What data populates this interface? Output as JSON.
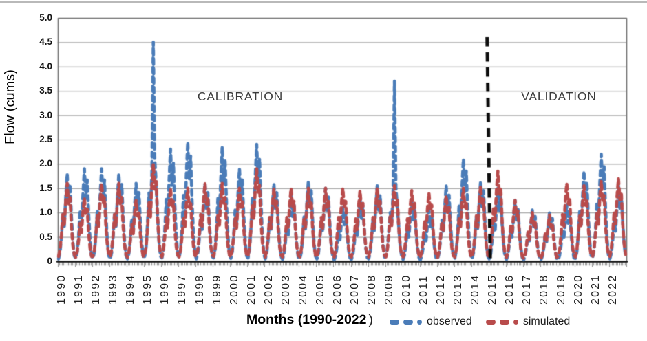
{
  "figure": {
    "ylabel": "Flow (cums)",
    "xlabel": "Months (1990-2022",
    "xlabel_close": ")",
    "calibration_label": "CALIBRATION",
    "validation_label": "VALIDATION",
    "legend": {
      "observed_label": "observed",
      "simulated_label": "simulated"
    }
  },
  "colors": {
    "observed": "#4a7cb8",
    "simulated": "#b84b4b",
    "grid": "#a8a8a8",
    "frame": "#6e6e6e",
    "baseline": "#1a1a1a",
    "minor_tick": "#8f8f8f",
    "divider": "#0d0d0d"
  },
  "chart_data": {
    "type": "line",
    "title": "",
    "xlabel": "Months (1990-2022)",
    "ylabel": "Flow (cums)",
    "ylim": [
      0,
      5.0
    ],
    "y_ticks": [
      "5.0",
      "4.5",
      "4.0",
      "3.5",
      "3.0",
      "2.5",
      "2.0",
      "1.5",
      "1.0",
      "0.5",
      "0"
    ],
    "x_years": [
      1990,
      1991,
      1992,
      1993,
      1994,
      1995,
      1996,
      1997,
      1998,
      1999,
      2000,
      2001,
      2002,
      2003,
      2004,
      2005,
      2006,
      2007,
      2008,
      2009,
      2010,
      2011,
      2012,
      2013,
      2014,
      2015,
      2016,
      2017,
      2018,
      2019,
      2020,
      2021,
      2022
    ],
    "line_style": "dashed",
    "grid": "horizontal",
    "legend_position": "bottom",
    "annotations": {
      "calibration": "CALIBRATION",
      "validation": "VALIDATION"
    },
    "divider_before_year": 2015,
    "series_names": [
      "observed",
      "simulated"
    ],
    "years": [
      {
        "year": 1990,
        "observed": [
          0.05,
          0.18,
          0.5,
          0.99,
          0.72,
          1.3,
          1.8,
          1.22,
          1.58,
          0.9,
          0.4,
          0.11
        ],
        "simulated": [
          0.1,
          0.24,
          0.54,
          0.96,
          0.72,
          1.25,
          1.6,
          1.18,
          1.31,
          0.7,
          0.32,
          0.13
        ]
      },
      {
        "year": 1991,
        "observed": [
          0.06,
          0.19,
          0.53,
          1.05,
          0.76,
          1.37,
          1.9,
          1.29,
          1.67,
          0.95,
          0.42,
          0.11
        ],
        "simulated": [
          0.08,
          0.2,
          0.44,
          0.78,
          0.59,
          1.01,
          1.3,
          0.96,
          1.07,
          0.57,
          0.26,
          0.1
        ]
      },
      {
        "year": 1992,
        "observed": [
          0.06,
          0.19,
          0.53,
          1.05,
          0.76,
          1.37,
          1.9,
          1.29,
          1.67,
          0.95,
          0.42,
          0.11
        ],
        "simulated": [
          0.1,
          0.24,
          0.54,
          0.96,
          0.72,
          1.25,
          1.6,
          1.18,
          1.31,
          0.7,
          0.32,
          0.13
        ]
      },
      {
        "year": 1993,
        "observed": [
          0.05,
          0.18,
          0.5,
          0.99,
          0.72,
          1.3,
          1.8,
          1.22,
          1.58,
          0.9,
          0.4,
          0.11
        ],
        "simulated": [
          0.1,
          0.24,
          0.54,
          0.96,
          0.72,
          1.25,
          1.6,
          1.18,
          1.31,
          0.7,
          0.32,
          0.13
        ]
      },
      {
        "year": 1994,
        "observed": [
          0.05,
          0.16,
          0.45,
          0.88,
          0.64,
          1.15,
          1.6,
          1.09,
          1.41,
          0.8,
          0.35,
          0.1
        ],
        "simulated": [
          0.08,
          0.19,
          0.43,
          0.75,
          0.56,
          0.98,
          1.25,
          0.93,
          1.03,
          0.55,
          0.25,
          0.1
        ]
      },
      {
        "year": 1995,
        "observed": [
          0.1,
          0.3,
          0.8,
          1.4,
          1.0,
          1.8,
          4.5,
          2.1,
          1.6,
          0.9,
          0.4,
          0.1
        ],
        "simulated": [
          0.12,
          0.3,
          0.68,
          1.2,
          0.9,
          1.56,
          2.0,
          1.48,
          1.64,
          0.88,
          0.4,
          0.16
        ]
      },
      {
        "year": 1996,
        "observed": [
          0.07,
          0.23,
          0.64,
          1.27,
          0.92,
          1.66,
          2.3,
          1.56,
          2.02,
          1.15,
          0.51,
          0.14
        ],
        "simulated": [
          0.09,
          0.23,
          0.51,
          0.9,
          0.68,
          1.17,
          1.5,
          1.11,
          1.23,
          0.66,
          0.3,
          0.12
        ]
      },
      {
        "year": 1997,
        "observed": [
          0.07,
          0.25,
          0.69,
          1.35,
          0.98,
          1.76,
          2.45,
          1.67,
          2.16,
          1.23,
          0.54,
          0.15
        ],
        "simulated": [
          0.09,
          0.23,
          0.51,
          0.9,
          0.68,
          1.17,
          1.5,
          1.11,
          1.23,
          0.66,
          0.3,
          0.12
        ]
      },
      {
        "year": 1998,
        "observed": [
          0.05,
          0.16,
          0.45,
          0.88,
          0.64,
          1.15,
          1.6,
          1.09,
          1.41,
          0.8,
          0.35,
          0.1
        ],
        "simulated": [
          0.1,
          0.24,
          0.54,
          0.96,
          0.72,
          1.25,
          1.6,
          1.18,
          1.31,
          0.7,
          0.32,
          0.13
        ]
      },
      {
        "year": 1999,
        "observed": [
          0.07,
          0.24,
          0.66,
          1.29,
          0.94,
          1.69,
          2.35,
          1.6,
          2.07,
          1.18,
          0.52,
          0.14
        ],
        "simulated": [
          0.1,
          0.24,
          0.54,
          0.96,
          0.72,
          1.25,
          1.6,
          1.18,
          1.31,
          0.7,
          0.32,
          0.13
        ]
      },
      {
        "year": 2000,
        "observed": [
          0.06,
          0.19,
          0.53,
          1.05,
          0.76,
          1.37,
          1.9,
          1.29,
          1.67,
          0.95,
          0.42,
          0.11
        ],
        "simulated": [
          0.09,
          0.23,
          0.51,
          0.9,
          0.68,
          1.17,
          1.5,
          1.11,
          1.23,
          0.66,
          0.3,
          0.12
        ]
      },
      {
        "year": 2001,
        "observed": [
          0.07,
          0.24,
          0.67,
          1.32,
          0.96,
          1.73,
          2.4,
          1.63,
          2.11,
          1.2,
          0.53,
          0.14
        ],
        "simulated": [
          0.11,
          0.29,
          0.65,
          1.14,
          0.86,
          1.48,
          1.9,
          1.41,
          1.56,
          0.84,
          0.38,
          0.15
        ]
      },
      {
        "year": 2002,
        "observed": [
          0.05,
          0.16,
          0.45,
          0.88,
          0.64,
          1.15,
          1.6,
          1.09,
          1.41,
          0.8,
          0.35,
          0.1
        ],
        "simulated": [
          0.09,
          0.23,
          0.51,
          0.9,
          0.68,
          1.17,
          1.5,
          1.11,
          1.23,
          0.66,
          0.3,
          0.12
        ]
      },
      {
        "year": 2003,
        "observed": [
          0.04,
          0.14,
          0.38,
          0.74,
          0.54,
          0.97,
          1.35,
          0.92,
          1.19,
          0.68,
          0.3,
          0.08
        ],
        "simulated": [
          0.09,
          0.23,
          0.51,
          0.9,
          0.68,
          1.17,
          1.5,
          1.11,
          1.23,
          0.66,
          0.3,
          0.12
        ]
      },
      {
        "year": 2004,
        "observed": [
          0.05,
          0.17,
          0.46,
          0.91,
          0.66,
          1.19,
          1.65,
          1.12,
          1.45,
          0.83,
          0.36,
          0.1
        ],
        "simulated": [
          0.09,
          0.23,
          0.51,
          0.9,
          0.68,
          1.17,
          1.5,
          1.11,
          1.23,
          0.66,
          0.3,
          0.12
        ]
      },
      {
        "year": 2005,
        "observed": [
          0.05,
          0.15,
          0.42,
          0.83,
          0.6,
          1.08,
          1.5,
          1.02,
          1.32,
          0.75,
          0.33,
          0.09
        ],
        "simulated": [
          0.09,
          0.23,
          0.51,
          0.9,
          0.68,
          1.17,
          1.5,
          1.11,
          1.23,
          0.66,
          0.3,
          0.12
        ]
      },
      {
        "year": 2006,
        "observed": [
          0.03,
          0.11,
          0.31,
          0.61,
          0.44,
          0.79,
          1.1,
          0.75,
          0.97,
          0.55,
          0.24,
          0.07
        ],
        "simulated": [
          0.09,
          0.23,
          0.51,
          0.9,
          0.68,
          1.17,
          1.5,
          1.11,
          1.23,
          0.66,
          0.3,
          0.12
        ]
      },
      {
        "year": 2007,
        "observed": [
          0.04,
          0.13,
          0.36,
          0.72,
          0.52,
          0.94,
          1.3,
          0.88,
          1.14,
          0.65,
          0.29,
          0.08
        ],
        "simulated": [
          0.09,
          0.22,
          0.49,
          0.87,
          0.65,
          1.13,
          1.45,
          1.07,
          1.19,
          0.64,
          0.29,
          0.12
        ]
      },
      {
        "year": 2008,
        "observed": [
          0.05,
          0.16,
          0.43,
          0.85,
          0.62,
          1.12,
          1.55,
          1.05,
          1.36,
          0.78,
          0.34,
          0.09
        ],
        "simulated": [
          0.09,
          0.23,
          0.51,
          0.9,
          0.68,
          1.17,
          1.5,
          1.11,
          1.23,
          0.66,
          0.3,
          0.12
        ]
      },
      {
        "year": 2009,
        "observed": [
          0.1,
          0.25,
          0.6,
          1.0,
          0.8,
          1.4,
          3.7,
          1.5,
          1.1,
          0.7,
          0.3,
          0.1
        ],
        "simulated": [
          0.09,
          0.23,
          0.53,
          0.93,
          0.7,
          1.21,
          1.55,
          1.15,
          1.27,
          0.68,
          0.31,
          0.12
        ]
      },
      {
        "year": 2010,
        "observed": [
          0.04,
          0.13,
          0.35,
          0.69,
          0.5,
          0.9,
          1.25,
          0.85,
          1.1,
          0.63,
          0.28,
          0.08
        ],
        "simulated": [
          0.09,
          0.22,
          0.49,
          0.87,
          0.65,
          1.13,
          1.45,
          1.07,
          1.19,
          0.64,
          0.29,
          0.12
        ]
      },
      {
        "year": 2011,
        "observed": [
          0.03,
          0.11,
          0.29,
          0.58,
          0.42,
          0.76,
          1.05,
          0.71,
          0.92,
          0.53,
          0.23,
          0.06
        ],
        "simulated": [
          0.08,
          0.21,
          0.48,
          0.84,
          0.63,
          1.09,
          1.4,
          1.04,
          1.15,
          0.62,
          0.28,
          0.11
        ]
      },
      {
        "year": 2012,
        "observed": [
          0.05,
          0.16,
          0.43,
          0.85,
          0.62,
          1.12,
          1.55,
          1.05,
          1.36,
          0.78,
          0.34,
          0.09
        ],
        "simulated": [
          0.08,
          0.2,
          0.46,
          0.81,
          0.61,
          1.05,
          1.35,
          1.0,
          1.11,
          0.59,
          0.27,
          0.11
        ]
      },
      {
        "year": 2013,
        "observed": [
          0.06,
          0.21,
          0.59,
          1.16,
          0.84,
          1.51,
          2.1,
          1.43,
          1.85,
          1.05,
          0.46,
          0.13
        ],
        "simulated": [
          0.09,
          0.23,
          0.51,
          0.9,
          0.68,
          1.17,
          1.5,
          1.11,
          1.23,
          0.66,
          0.3,
          0.12
        ]
      },
      {
        "year": 2014,
        "observed": [
          0.05,
          0.17,
          0.46,
          0.91,
          0.66,
          1.19,
          1.65,
          1.12,
          1.45,
          0.83,
          0.36,
          0.1
        ],
        "simulated": [
          0.09,
          0.23,
          0.53,
          0.93,
          0.7,
          1.21,
          1.55,
          1.15,
          1.27,
          0.68,
          0.31,
          0.12
        ]
      },
      {
        "year": 2015,
        "observed": [
          0.05,
          0.15,
          0.42,
          0.83,
          0.6,
          1.08,
          1.5,
          1.02,
          1.32,
          0.75,
          0.33,
          0.09
        ],
        "simulated": [
          0.11,
          0.28,
          0.63,
          1.11,
          0.83,
          1.44,
          1.85,
          1.37,
          1.52,
          0.81,
          0.37,
          0.15
        ]
      },
      {
        "year": 2016,
        "observed": [
          0.04,
          0.13,
          0.35,
          0.69,
          0.5,
          0.9,
          1.25,
          0.85,
          1.1,
          0.63,
          0.28,
          0.08
        ],
        "simulated": [
          0.08,
          0.19,
          0.43,
          0.75,
          0.56,
          0.98,
          1.25,
          0.93,
          1.03,
          0.55,
          0.25,
          0.1
        ]
      },
      {
        "year": 2017,
        "observed": [
          0.03,
          0.11,
          0.29,
          0.58,
          0.42,
          0.76,
          1.05,
          0.71,
          0.92,
          0.53,
          0.23,
          0.06
        ],
        "simulated": [
          0.06,
          0.15,
          0.34,
          0.6,
          0.45,
          0.78,
          1.0,
          0.74,
          0.82,
          0.44,
          0.2,
          0.08
        ]
      },
      {
        "year": 2018,
        "observed": [
          0.03,
          0.1,
          0.28,
          0.55,
          0.4,
          0.72,
          1.0,
          0.68,
          0.88,
          0.5,
          0.22,
          0.06
        ],
        "simulated": [
          0.06,
          0.14,
          0.32,
          0.57,
          0.43,
          0.74,
          0.95,
          0.7,
          0.78,
          0.42,
          0.19,
          0.08
        ]
      },
      {
        "year": 2019,
        "observed": [
          0.03,
          0.12,
          0.32,
          0.63,
          0.46,
          0.83,
          1.15,
          0.78,
          1.01,
          0.58,
          0.25,
          0.07
        ],
        "simulated": [
          0.1,
          0.24,
          0.54,
          0.96,
          0.72,
          1.25,
          1.6,
          1.18,
          1.31,
          0.7,
          0.32,
          0.13
        ]
      },
      {
        "year": 2020,
        "observed": [
          0.06,
          0.19,
          0.52,
          1.02,
          0.74,
          1.33,
          1.85,
          1.26,
          1.63,
          0.93,
          0.41,
          0.11
        ],
        "simulated": [
          0.09,
          0.23,
          0.53,
          0.93,
          0.7,
          1.21,
          1.55,
          1.15,
          1.27,
          0.68,
          0.31,
          0.12
        ]
      },
      {
        "year": 2021,
        "observed": [
          0.07,
          0.22,
          0.62,
          1.21,
          0.88,
          1.58,
          2.2,
          1.5,
          1.94,
          1.1,
          0.48,
          0.13
        ],
        "simulated": [
          0.1,
          0.25,
          0.56,
          0.99,
          0.74,
          1.29,
          1.65,
          1.22,
          1.35,
          0.73,
          0.33,
          0.13
        ]
      },
      {
        "year": 2022,
        "observed": [
          0.05,
          0.16,
          0.43,
          0.85,
          0.62,
          1.12,
          1.55,
          1.05,
          1.36,
          0.78,
          0.34,
          0.09
        ],
        "simulated": [
          0.1,
          0.26,
          0.58,
          1.02,
          0.77,
          1.33,
          1.7,
          1.26,
          1.39,
          0.75,
          0.34,
          0.14
        ]
      }
    ]
  }
}
